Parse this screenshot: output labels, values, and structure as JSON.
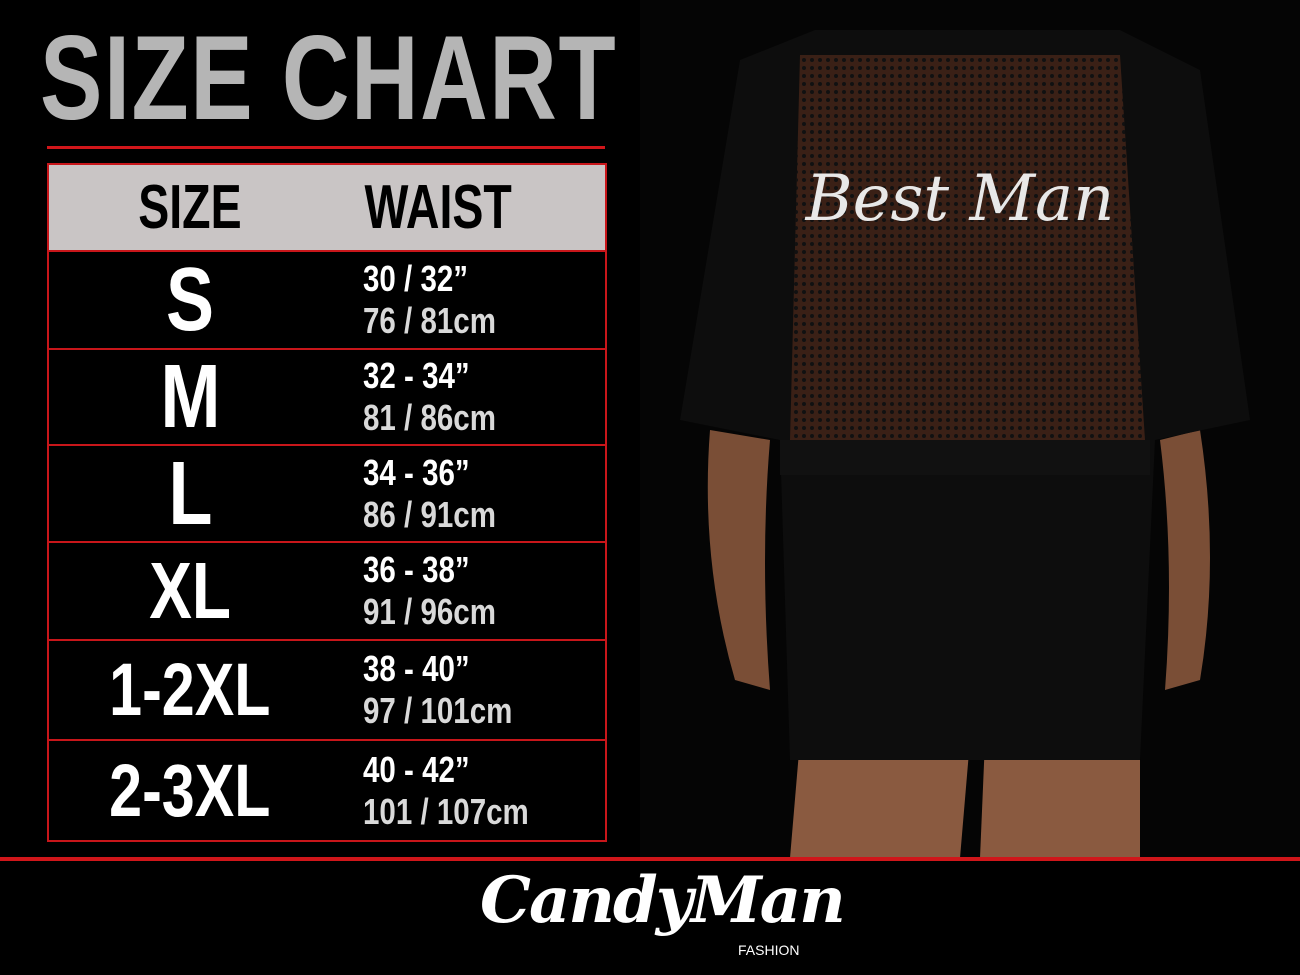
{
  "title": "SIZE CHART",
  "table": {
    "headers": [
      "SIZE",
      "WAIST"
    ],
    "rows": [
      {
        "size": "S",
        "inches": "30 / 32”",
        "cm": "76 / 81cm"
      },
      {
        "size": "M",
        "inches": "32 - 34”",
        "cm": "81 / 86cm"
      },
      {
        "size": "L",
        "inches": "34 - 36”",
        "cm": "86 / 91cm"
      },
      {
        "size": "XL",
        "inches": "36 - 38”",
        "cm": "91 / 96cm"
      },
      {
        "size": "1-2XL",
        "inches": "38 - 40”",
        "cm": "97 / 101cm"
      },
      {
        "size": "2-3XL",
        "inches": "40 - 42”",
        "cm": "101 / 107cm"
      }
    ]
  },
  "garment_print": "Best Man",
  "brand": {
    "name": "CandyMan",
    "tagline": "FASHION"
  },
  "colors": {
    "accent": "#d0161a",
    "header_bg": "#c9c5c5",
    "title": "#b5b5b5",
    "background": "#000000"
  }
}
